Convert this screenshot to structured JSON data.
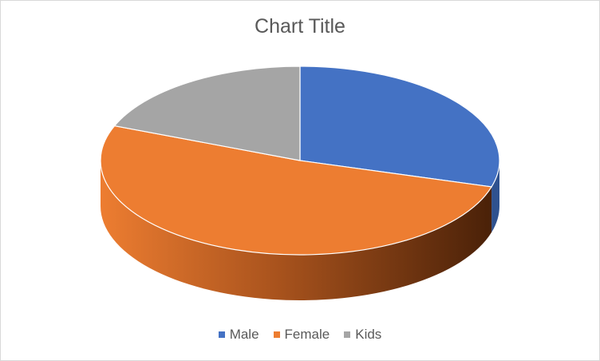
{
  "chart_data": {
    "type": "pie",
    "title": "Chart Title",
    "categories": [
      "Male",
      "Female",
      "Kids"
    ],
    "values": [
      29.5,
      51.5,
      19.0
    ],
    "colors": [
      "#4472c4",
      "#ed7d31",
      "#a5a5a5"
    ],
    "side_colors": [
      "#2f528f",
      "#843c0c",
      "#7b7b7b"
    ],
    "legend": "bottom",
    "view": "3d"
  }
}
